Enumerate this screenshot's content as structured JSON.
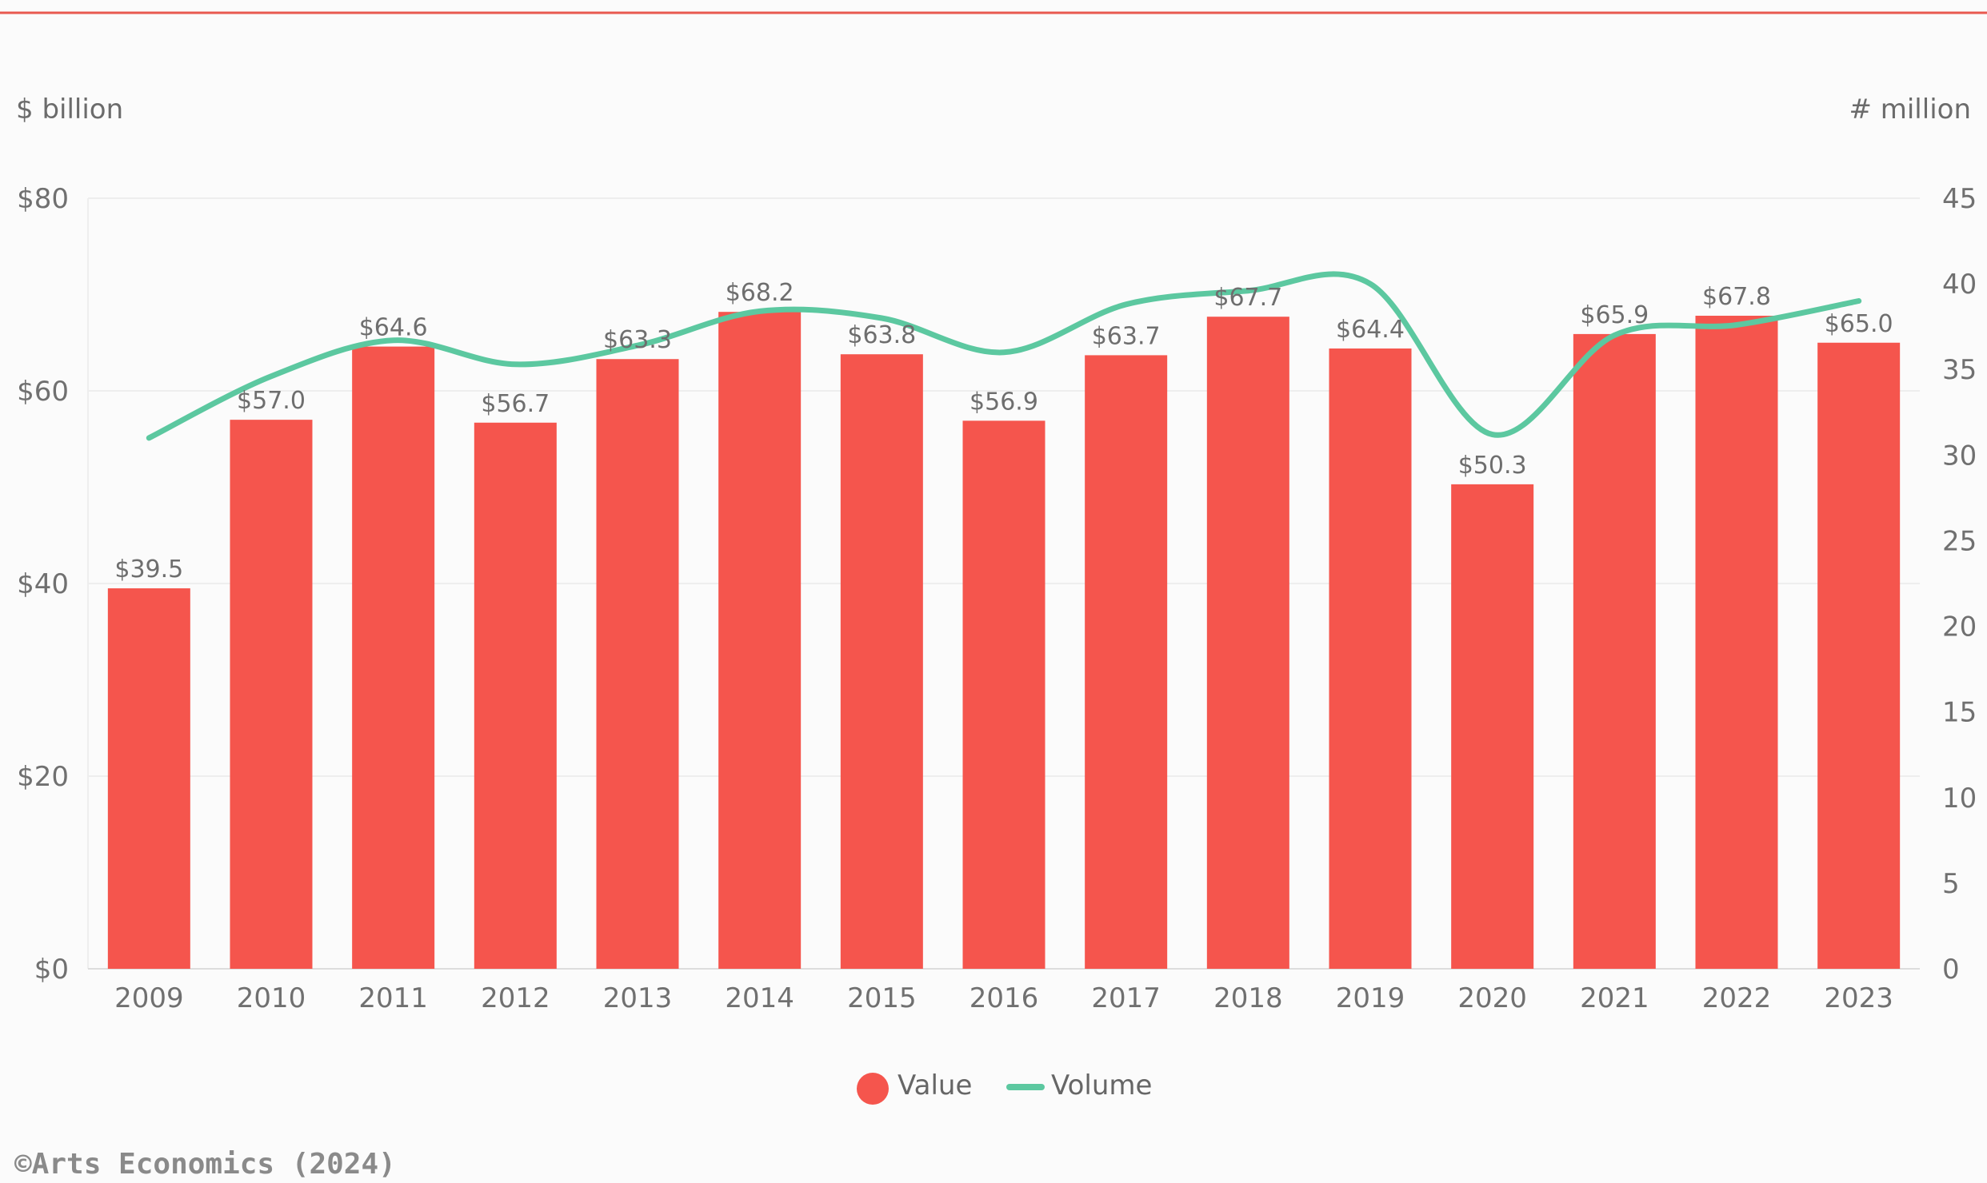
{
  "colors": {
    "top_rule": "#e8594f",
    "bar": "#f5554d",
    "line": "#5cc8a0",
    "grid": "#eeeeee",
    "text": "#6b6b6b"
  },
  "chart_data": {
    "type": "bar",
    "left_axis_title": "$ billion",
    "right_axis_title": "# million",
    "categories": [
      "2009",
      "2010",
      "2011",
      "2012",
      "2013",
      "2014",
      "2015",
      "2016",
      "2017",
      "2018",
      "2019",
      "2020",
      "2021",
      "2022",
      "2023"
    ],
    "series": [
      {
        "name": "Value",
        "type": "bar",
        "axis": "left",
        "values": [
          39.5,
          57.0,
          64.6,
          56.7,
          63.3,
          68.2,
          63.8,
          56.9,
          63.7,
          67.7,
          64.4,
          50.3,
          65.9,
          67.8,
          65.0
        ],
        "labels": [
          "$39.5",
          "$57.0",
          "$64.6",
          "$56.7",
          "$63.3",
          "$68.2",
          "$63.8",
          "$56.9",
          "$63.7",
          "$67.7",
          "$64.4",
          "$50.3",
          "$65.9",
          "$67.8",
          "$65.0"
        ]
      },
      {
        "name": "Volume",
        "type": "line",
        "axis": "right",
        "smooth": true,
        "values": [
          31.0,
          34.6,
          36.7,
          35.3,
          36.4,
          38.4,
          38.0,
          36.0,
          38.8,
          39.6,
          40.0,
          31.2,
          37.0,
          37.6,
          39.0
        ]
      }
    ],
    "left_axis": {
      "min": 0,
      "max": 80,
      "ticks": [
        0,
        20,
        40,
        60,
        80
      ],
      "tick_labels": [
        "$0",
        "$20",
        "$40",
        "$60",
        "$80"
      ]
    },
    "right_axis": {
      "min": 0,
      "max": 45,
      "ticks": [
        0,
        5,
        10,
        15,
        20,
        25,
        30,
        35,
        40,
        45
      ],
      "tick_labels": [
        "0",
        "5",
        "10",
        "15",
        "20",
        "25",
        "30",
        "35",
        "40",
        "45"
      ]
    },
    "grid": true,
    "legend": {
      "position": "bottom-center",
      "items": [
        "Value",
        "Volume"
      ]
    }
  },
  "credit": "©Arts Economics (2024)"
}
